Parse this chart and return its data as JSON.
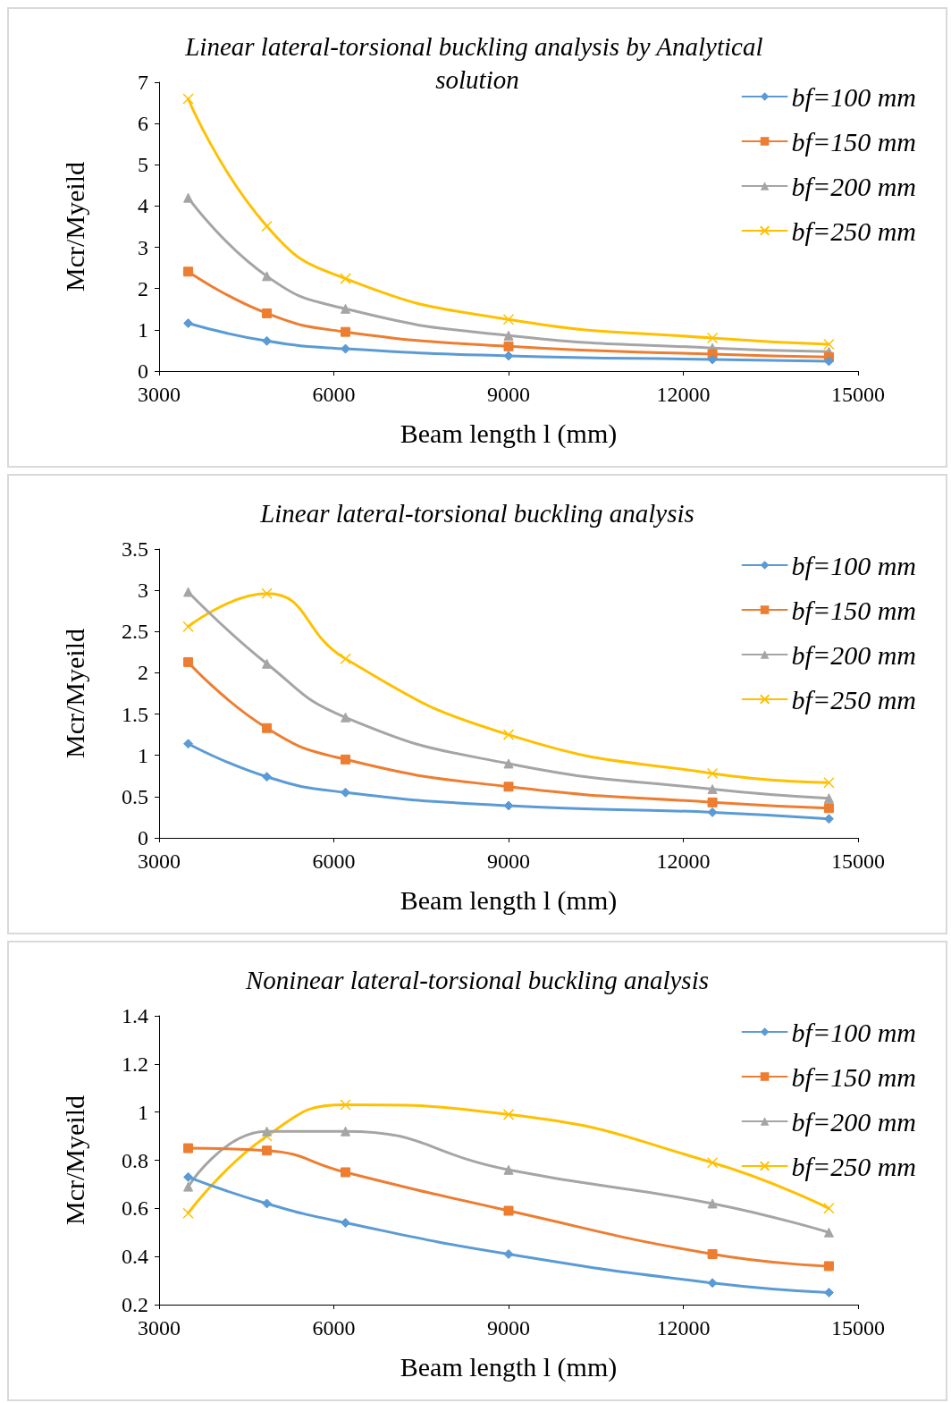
{
  "chart_data": [
    {
      "type": "line",
      "title": "Linear lateral-torsional buckling analysis by Analytical solution",
      "xlabel": "Beam length l (mm)",
      "ylabel": "Mcr/Myeild",
      "x": [
        3500,
        4850,
        6200,
        9000,
        12500,
        14500
      ],
      "xlim": [
        3000,
        15000
      ],
      "xticks": [
        3000,
        6000,
        9000,
        12000,
        15000
      ],
      "ylim": [
        0,
        7
      ],
      "yticks": [
        0,
        1,
        2,
        3,
        4,
        5,
        6,
        7
      ],
      "grid": false,
      "legend": "top right",
      "series": [
        {
          "name": "bf=100 mm",
          "color": "#5b9bd5",
          "marker": "diamond",
          "values": [
            1.16,
            0.73,
            0.54,
            0.37,
            0.28,
            0.24
          ]
        },
        {
          "name": "bf=150 mm",
          "color": "#ed7d31",
          "marker": "square",
          "values": [
            2.41,
            1.4,
            0.95,
            0.6,
            0.41,
            0.34
          ]
        },
        {
          "name": "bf=200 mm",
          "color": "#a5a5a5",
          "marker": "triangle",
          "values": [
            4.2,
            2.3,
            1.51,
            0.86,
            0.56,
            0.47
          ]
        },
        {
          "name": "bf=250 mm",
          "color": "#ffc000",
          "marker": "cross",
          "values": [
            6.6,
            3.51,
            2.24,
            1.25,
            0.8,
            0.65
          ]
        }
      ]
    },
    {
      "type": "line",
      "title": "Linear lateral-torsional buckling analysis",
      "xlabel": "Beam length l (mm)",
      "ylabel": "Mcr/Myeild",
      "x": [
        3500,
        4850,
        6200,
        9000,
        12500,
        14500
      ],
      "xlim": [
        3000,
        15000
      ],
      "xticks": [
        3000,
        6000,
        9000,
        12000,
        15000
      ],
      "ylim": [
        0,
        3.5
      ],
      "yticks": [
        0,
        0.5,
        1,
        1.5,
        2,
        2.5,
        3,
        3.5
      ],
      "grid": false,
      "legend": "top right",
      "series": [
        {
          "name": "bf=100 mm",
          "color": "#5b9bd5",
          "marker": "diamond",
          "values": [
            1.14,
            0.74,
            0.55,
            0.39,
            0.31,
            0.23
          ]
        },
        {
          "name": "bf=150 mm",
          "color": "#ed7d31",
          "marker": "square",
          "values": [
            2.13,
            1.33,
            0.95,
            0.62,
            0.43,
            0.36
          ]
        },
        {
          "name": "bf=200 mm",
          "color": "#a5a5a5",
          "marker": "triangle",
          "values": [
            2.98,
            2.11,
            1.46,
            0.9,
            0.59,
            0.48
          ]
        },
        {
          "name": "bf=250 mm",
          "color": "#ffc000",
          "marker": "cross",
          "values": [
            2.56,
            2.96,
            2.17,
            1.25,
            0.78,
            0.67
          ]
        }
      ]
    },
    {
      "type": "line",
      "title": "Noninear lateral-torsional buckling analysis",
      "xlabel": "Beam length l (mm)",
      "ylabel": "Mcr/Myeild",
      "x": [
        3500,
        4850,
        6200,
        9000,
        12500,
        14500
      ],
      "xlim": [
        3000,
        15000
      ],
      "xticks": [
        3000,
        6000,
        9000,
        12000,
        15000
      ],
      "ylim": [
        0.2,
        1.4
      ],
      "yticks": [
        0.2,
        0.4,
        0.6,
        0.8,
        1,
        1.2,
        1.4
      ],
      "grid": false,
      "legend": "top right",
      "series": [
        {
          "name": "bf=100 mm",
          "color": "#5b9bd5",
          "marker": "diamond",
          "values": [
            0.73,
            0.62,
            0.54,
            0.41,
            0.29,
            0.25
          ]
        },
        {
          "name": "bf=150 mm",
          "color": "#ed7d31",
          "marker": "square",
          "values": [
            0.85,
            0.84,
            0.75,
            0.59,
            0.41,
            0.36
          ]
        },
        {
          "name": "bf=200 mm",
          "color": "#a5a5a5",
          "marker": "triangle",
          "values": [
            0.69,
            0.92,
            0.92,
            0.76,
            0.62,
            0.5
          ]
        },
        {
          "name": "bf=250 mm",
          "color": "#ffc000",
          "marker": "cross",
          "values": [
            0.58,
            0.9,
            1.03,
            0.99,
            0.79,
            0.6
          ]
        }
      ]
    }
  ]
}
